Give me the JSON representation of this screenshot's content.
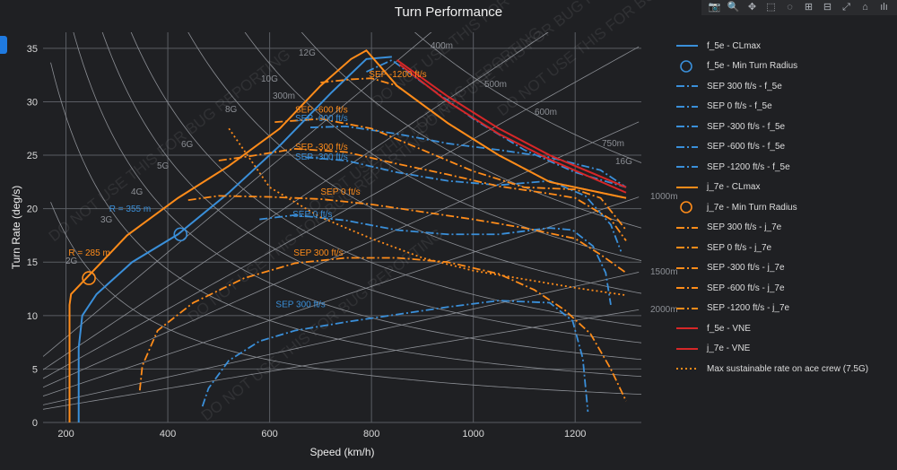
{
  "title": "Turn Performance",
  "modebar": [
    {
      "name": "camera-icon",
      "glyph": "📷"
    },
    {
      "name": "zoom-icon",
      "glyph": "🔍"
    },
    {
      "name": "pan-icon",
      "glyph": "✥"
    },
    {
      "name": "box-select-icon",
      "glyph": "⬚"
    },
    {
      "name": "lasso-icon",
      "glyph": "◌"
    },
    {
      "name": "zoom-in-icon",
      "glyph": "⊞"
    },
    {
      "name": "zoom-out-icon",
      "glyph": "⊟"
    },
    {
      "name": "autoscale-icon",
      "glyph": "⤢"
    },
    {
      "name": "home-icon",
      "glyph": "⌂"
    },
    {
      "name": "plotly-logo-icon",
      "glyph": "ılı"
    }
  ],
  "chart_data": {
    "type": "line",
    "title": "Turn Performance",
    "xlabel": "Speed (km/h)",
    "ylabel": "Turn Rate (deg/s)",
    "xlim": [
      155,
      1330
    ],
    "ylim": [
      0,
      36.5
    ],
    "xticks": [
      200,
      400,
      600,
      800,
      1000,
      1200
    ],
    "yticks": [
      0,
      5,
      10,
      15,
      20,
      25,
      30,
      35
    ],
    "grid": true,
    "legend_position": "right",
    "colors": {
      "f5e": "#3a8fd9",
      "j7e": "#ff8c1a",
      "vne": "#d62728",
      "grid": "#5a5d63",
      "ref": "#8c8f95",
      "bg": "#1f2023"
    },
    "radius_lines": [
      {
        "label": "400m",
        "r": 400
      },
      {
        "label": "500m",
        "r": 500
      },
      {
        "label": "600m",
        "r": 600
      },
      {
        "label": "750m",
        "r": 750
      },
      {
        "label": "1000m",
        "r": 1000
      },
      {
        "label": "1500m",
        "r": 1500
      },
      {
        "label": "2000m",
        "r": 2000
      }
    ],
    "radius_labels_plain": [
      "300m"
    ],
    "g_curves": [
      {
        "label": "2G",
        "g": 2
      },
      {
        "label": "3G",
        "g": 3
      },
      {
        "label": "4G",
        "g": 4
      },
      {
        "label": "5G",
        "g": 5
      },
      {
        "label": "6G",
        "g": 6
      },
      {
        "label": "8G",
        "g": 8
      },
      {
        "label": "10G",
        "g": 10
      },
      {
        "label": "12G",
        "g": 12
      },
      {
        "label": "16G",
        "g": 16
      }
    ],
    "series": [
      {
        "name": "f_5e - CLmax",
        "color": "#3a8fd9",
        "dash": "solid",
        "x": [
          225,
          225,
          232,
          260,
          330,
          420,
          520,
          620,
          720,
          790,
          840
        ],
        "y": [
          0,
          7,
          10,
          12,
          15,
          17.6,
          21.5,
          25.9,
          30.8,
          34,
          34.2
        ]
      },
      {
        "name": "f_5e - Min Turn Radius",
        "color": "#3a8fd9",
        "marker": "circle",
        "x": [
          425
        ],
        "y": [
          17.6
        ]
      },
      {
        "name": "SEP 300 ft/s - f_5e",
        "color": "#3a8fd9",
        "dash": "dashdot",
        "x": [
          468,
          480,
          520,
          580,
          650,
          750,
          850,
          950,
          1050,
          1150,
          1195,
          1215,
          1225
        ],
        "y": [
          1.5,
          3.2,
          5.8,
          7.6,
          8.6,
          9.4,
          10.1,
          10.8,
          11.4,
          11.2,
          9.5,
          6,
          1
        ]
      },
      {
        "name": "SEP 0 ft/s - f_5e",
        "color": "#3a8fd9",
        "dash": "dashdot",
        "x": [
          580,
          650,
          750,
          850,
          950,
          1050,
          1150,
          1195,
          1235,
          1260,
          1270
        ],
        "y": [
          19,
          19.4,
          18.9,
          18,
          17.6,
          17.6,
          18.2,
          18,
          16.5,
          14,
          11
        ]
      },
      {
        "name": "SEP -300 ft/s - f_5e",
        "color": "#3a8fd9",
        "dash": "dashdot",
        "x": [
          670,
          750,
          850,
          950,
          1050,
          1150,
          1220,
          1270,
          1290
        ],
        "y": [
          24.8,
          24.5,
          23.4,
          22.6,
          22.2,
          22.6,
          21.2,
          18.5,
          16
        ]
      },
      {
        "name": "SEP -600 ft/s - f_5e",
        "color": "#3a8fd9",
        "dash": "dashdot",
        "x": [
          680,
          750,
          850,
          950,
          1050,
          1150,
          1250,
          1300
        ],
        "y": [
          27.6,
          27.7,
          27,
          26.1,
          25.5,
          24.8,
          23.6,
          22
        ]
      },
      {
        "name": "SEP -1200 ft/s - f_5e",
        "color": "#3a8fd9",
        "dash": "dashdot",
        "x": [
          790,
          840,
          900,
          1000,
          1100,
          1200,
          1300
        ],
        "y": [
          32.8,
          33.9,
          31.8,
          28.4,
          25.5,
          23.4,
          22
        ]
      },
      {
        "name": "j_7e - CLmax",
        "color": "#ff8c1a",
        "dash": "solid",
        "x": [
          207,
          207,
          210,
          240,
          320,
          420,
          520,
          620,
          700,
          760,
          790,
          850,
          950,
          1050,
          1150,
          1300
        ],
        "y": [
          0,
          11,
          12,
          13.5,
          17.5,
          21,
          24,
          27.5,
          31.5,
          34,
          34.8,
          31.5,
          28,
          25,
          22.5,
          21
        ]
      },
      {
        "name": "j_7e - Min Turn Radius",
        "color": "#ff8c1a",
        "marker": "circle",
        "x": [
          245
        ],
        "y": [
          13.5
        ]
      },
      {
        "name": "SEP 300 ft/s - j_7e",
        "color": "#ff8c1a",
        "dash": "dashdot",
        "x": [
          345,
          350,
          380,
          450,
          550,
          650,
          750,
          850,
          950,
          1050,
          1120,
          1180,
          1230,
          1270,
          1300
        ],
        "y": [
          3,
          5.3,
          8.6,
          11.2,
          13.5,
          14.9,
          15.4,
          15.4,
          15,
          13.9,
          12.4,
          10.5,
          8.3,
          5,
          2
        ]
      },
      {
        "name": "SEP 0 ft/s - j_7e",
        "color": "#ff8c1a",
        "dash": "dashdot",
        "x": [
          440,
          500,
          600,
          700,
          800,
          900,
          1000,
          1100,
          1200,
          1250,
          1300
        ],
        "y": [
          20.8,
          21.2,
          21.1,
          20.9,
          20.4,
          19.7,
          19,
          18.2,
          17.2,
          15.7,
          14
        ]
      },
      {
        "name": "SEP -300 ft/s - j_7e",
        "color": "#ff8c1a",
        "dash": "dashdot",
        "x": [
          500,
          560,
          650,
          750,
          850,
          950,
          1050,
          1150,
          1200,
          1270,
          1300
        ],
        "y": [
          24.5,
          24.9,
          25.6,
          25.3,
          24.2,
          23.2,
          22.1,
          21.4,
          21,
          19,
          17
        ]
      },
      {
        "name": "SEP -600 ft/s - j_7e",
        "color": "#ff8c1a",
        "dash": "dashdot",
        "x": [
          610,
          700,
          800,
          900,
          1000,
          1100,
          1200,
          1250,
          1300
        ],
        "y": [
          28.1,
          28.4,
          27.5,
          25.5,
          23.5,
          22,
          21.8,
          21,
          18
        ]
      },
      {
        "name": "SEP -1200 ft/s - j_7e",
        "color": "#ff8c1a",
        "dash": "dashdot",
        "x": [
          700,
          760,
          800,
          850,
          950,
          1050,
          1150,
          1300
        ],
        "y": [
          31.8,
          32.1,
          32.2,
          31.5,
          28,
          25,
          22.5,
          21
        ]
      },
      {
        "name": "f_5e - VNE",
        "color": "#d62728",
        "dash": "solid",
        "x": [
          850,
          950,
          1050,
          1150,
          1300
        ],
        "y": [
          33.9,
          30.5,
          27.5,
          25,
          22
        ]
      },
      {
        "name": "j_7e - VNE",
        "color": "#d62728",
        "dash": "solid",
        "x": [
          855,
          950,
          1050,
          1150,
          1300
        ],
        "y": [
          33.5,
          30,
          27,
          24.6,
          21.5
        ]
      },
      {
        "name": "Max sustainable rate on ace crew (7.5G)",
        "color": "#ff8c1a",
        "dash": "dot",
        "x": [
          520,
          600,
          700,
          800,
          900,
          1000,
          1100,
          1200,
          1300
        ],
        "y": [
          27.5,
          22,
          19.2,
          17.2,
          15.4,
          14.2,
          13.4,
          12.6,
          11.9
        ]
      }
    ],
    "annotations": [
      {
        "text": "R = 285 m",
        "x": 205,
        "y": 15.6,
        "color": "#ff8c1a"
      },
      {
        "text": "R = 355 m",
        "x": 285,
        "y": 19.7,
        "color": "#3a8fd9"
      },
      {
        "text": "SEP -1200 ft/s",
        "x": 795,
        "y": 32.3,
        "color": "#ff8c1a"
      },
      {
        "text": "SEP -600 ft/s",
        "x": 650,
        "y": 29.0,
        "color": "#ff8c1a"
      },
      {
        "text": "SEP -600 ft/s",
        "x": 650,
        "y": 28.2,
        "color": "#3a8fd9"
      },
      {
        "text": "SEP -300 ft/s",
        "x": 650,
        "y": 25.5,
        "color": "#ff8c1a"
      },
      {
        "text": "SEP -300 ft/s",
        "x": 650,
        "y": 24.6,
        "color": "#3a8fd9"
      },
      {
        "text": "SEP 0 ft/s",
        "x": 700,
        "y": 21.3,
        "color": "#ff8c1a"
      },
      {
        "text": "SEP 0 ft/s",
        "x": 645,
        "y": 19.2,
        "color": "#3a8fd9"
      },
      {
        "text": "SEP 300 ft/s",
        "x": 647,
        "y": 15.6,
        "color": "#ff8c1a"
      },
      {
        "text": "SEP 300 ft/s",
        "x": 612,
        "y": 10.8,
        "color": "#3a8fd9"
      }
    ],
    "watermark": "DO NOT USE THIS FOR BUG REPORTING"
  }
}
